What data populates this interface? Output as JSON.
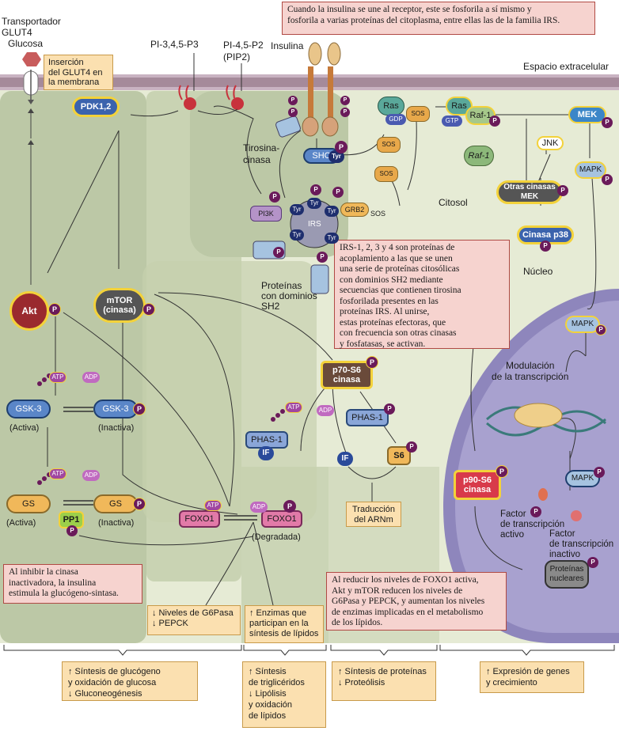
{
  "labels": {
    "transporter": "Transportador\nGLUT4",
    "glucose": "Glucosa",
    "glut4_insertion": "Inserción\ndel GLUT4 en\nla membrana",
    "pip3": "PI-3,4,5-P3",
    "pip2": "PI-4,5-P2\n(PIP2)",
    "insulin": "Insulina",
    "extracellular": "Espacio extracelular",
    "cytosol": "Citosol",
    "nucleus": "Núcleo",
    "tyrosine_kinase": "Tirosina-\ncinasa",
    "sh2_proteins": "Proteínas\ncon dominios\nSH2",
    "modulation": "Modulación\nde la transcripción",
    "active_tf": "Factor\nde transcripción\nactivo",
    "inactive_tf": "Factor\nde transcripción\ninactivo",
    "gsk3_active": "(Activa)",
    "gsk3_inactive": "(Inactiva)",
    "gs_active": "(Activa)",
    "gs_inactive": "(Inactiva)",
    "foxo_degraded": "(Degradada)",
    "sos": "SOS"
  },
  "nodes": {
    "pdk": "PDK1,2",
    "akt": "Akt",
    "mtor": "mTOR\n(cinasa)",
    "gsk3a": "GSK-3",
    "gsk3b": "GSK-3",
    "gs_a": "GS",
    "gs_b": "GS",
    "pp1": "PP1",
    "foxo_a": "FOXO1",
    "foxo_b": "FOXO1",
    "phas_a": "PHAS-1",
    "phas_b": "PHAS-1",
    "if_a": "IF",
    "if_b": "IF",
    "s6": "S6",
    "p70": "p70-S6\ncinasa",
    "p90": "p90-S6\ncinasa",
    "shc": "SHC",
    "tyr": "Tyr",
    "irs": "IRS",
    "pi3k": "PI3K",
    "grb2": "GRB2",
    "ras1": "Ras",
    "ras2": "Ras",
    "gdp": "GDP",
    "gtp": "GTP",
    "raf1a": "Raf-1",
    "raf1b": "Raf-1",
    "mek": "MEK",
    "jnk": "JNK",
    "mapk1": "MAPK",
    "mapk2": "MAPK",
    "mapk3": "MAPK",
    "other_mek": "Otras cinasas\nMEK",
    "p38": "Cinasa p38",
    "nuclear": "Proteínas\nnucleares",
    "atp": "ATP",
    "adp": "ADP",
    "p": "P"
  },
  "notes": {
    "top": "Cuando la insulina se une al receptor, este se fosforila a sí mismo y\nfosforila a varias proteínas del citoplasma, entre ellas las de la familia IRS.",
    "irs": "IRS-1, 2, 3 y 4 son proteínas de\nacoplamiento a las que se unen\nuna serie de proteínas citosólicas\ncon dominios SH2 mediante\nsecuencias que contienen tirosina\nfosforilada presentes en las\nproteínas IRS. Al unirse,\nestas proteínas efectoras, que\ncon frecuencia son otras cinasas\ny fosfatasas, se activan.",
    "gs": "Al inhibir la cinasa\ninactivadora, la insulina\nestimula la glucógeno-sintasa.",
    "foxo": "Al reducir los niveles de FOXO1 activa,\nAkt y mTOR reducen los niveles de\nG6Pasa y PEPCK, y aumentan los niveles\nde enzimas implicadas en el metabolismo\nde los lípidos."
  },
  "boxes": {
    "g6pasa": "↓ Niveles de G6Pasa\n↓ PEPCK",
    "enzymes": "↑ Enzimas que\n   participan en la\n   síntesis de lípidos",
    "translation": "Traducción\ndel ARNm"
  },
  "bottom": {
    "glycogen": "↑ Síntesis de glucógeno\n   y oxidación de glucosa\n↓ Gluconeogénesis",
    "triglycerides": "↑ Síntesis\n   de triglicéridos\n↓ Lipólisis\n   y oxidación\n   de lípidos",
    "proteins": "↑ Síntesis de proteínas\n↓ Proteólisis",
    "genes": "↑ Expresión de genes\n   y crecimiento"
  },
  "colors": {
    "membrane": "#a58a9a",
    "cytosol": "#e6ebd5",
    "zone": "#bcc8a6",
    "nucleus": "#8e86bc",
    "phospho": "#6a1a5a"
  }
}
